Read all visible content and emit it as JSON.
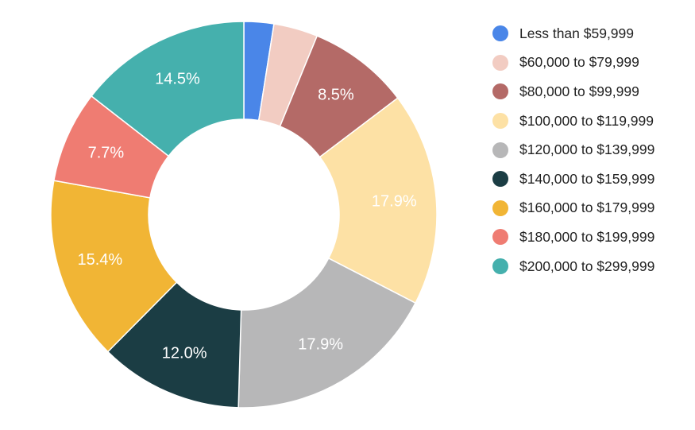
{
  "chart_data": {
    "type": "pie",
    "donut": true,
    "legend_position": "right",
    "categories": [
      "Less than $59,999",
      "$60,000 to $79,999",
      "$80,000 to $99,999",
      "$100,000 to $119,999",
      "$120,000 to $139,999",
      "$140,000 to $159,999",
      "$160,000 to $179,999",
      "$180,000 to $199,999",
      "$200,000 to $299,999"
    ],
    "values": [
      2.5,
      3.7,
      8.5,
      17.9,
      17.9,
      12.0,
      15.4,
      7.7,
      14.5
    ],
    "data_labels": [
      "",
      "",
      "8.5%",
      "17.9%",
      "17.9%",
      "12.0%",
      "15.4%",
      "7.7%",
      "14.5%"
    ],
    "colors": [
      "#4a86e8",
      "#f2ccc2",
      "#b46a67",
      "#fde1a5",
      "#b7b7b8",
      "#1b3d44",
      "#f1b535",
      "#ef7c72",
      "#45b0ad"
    ]
  }
}
